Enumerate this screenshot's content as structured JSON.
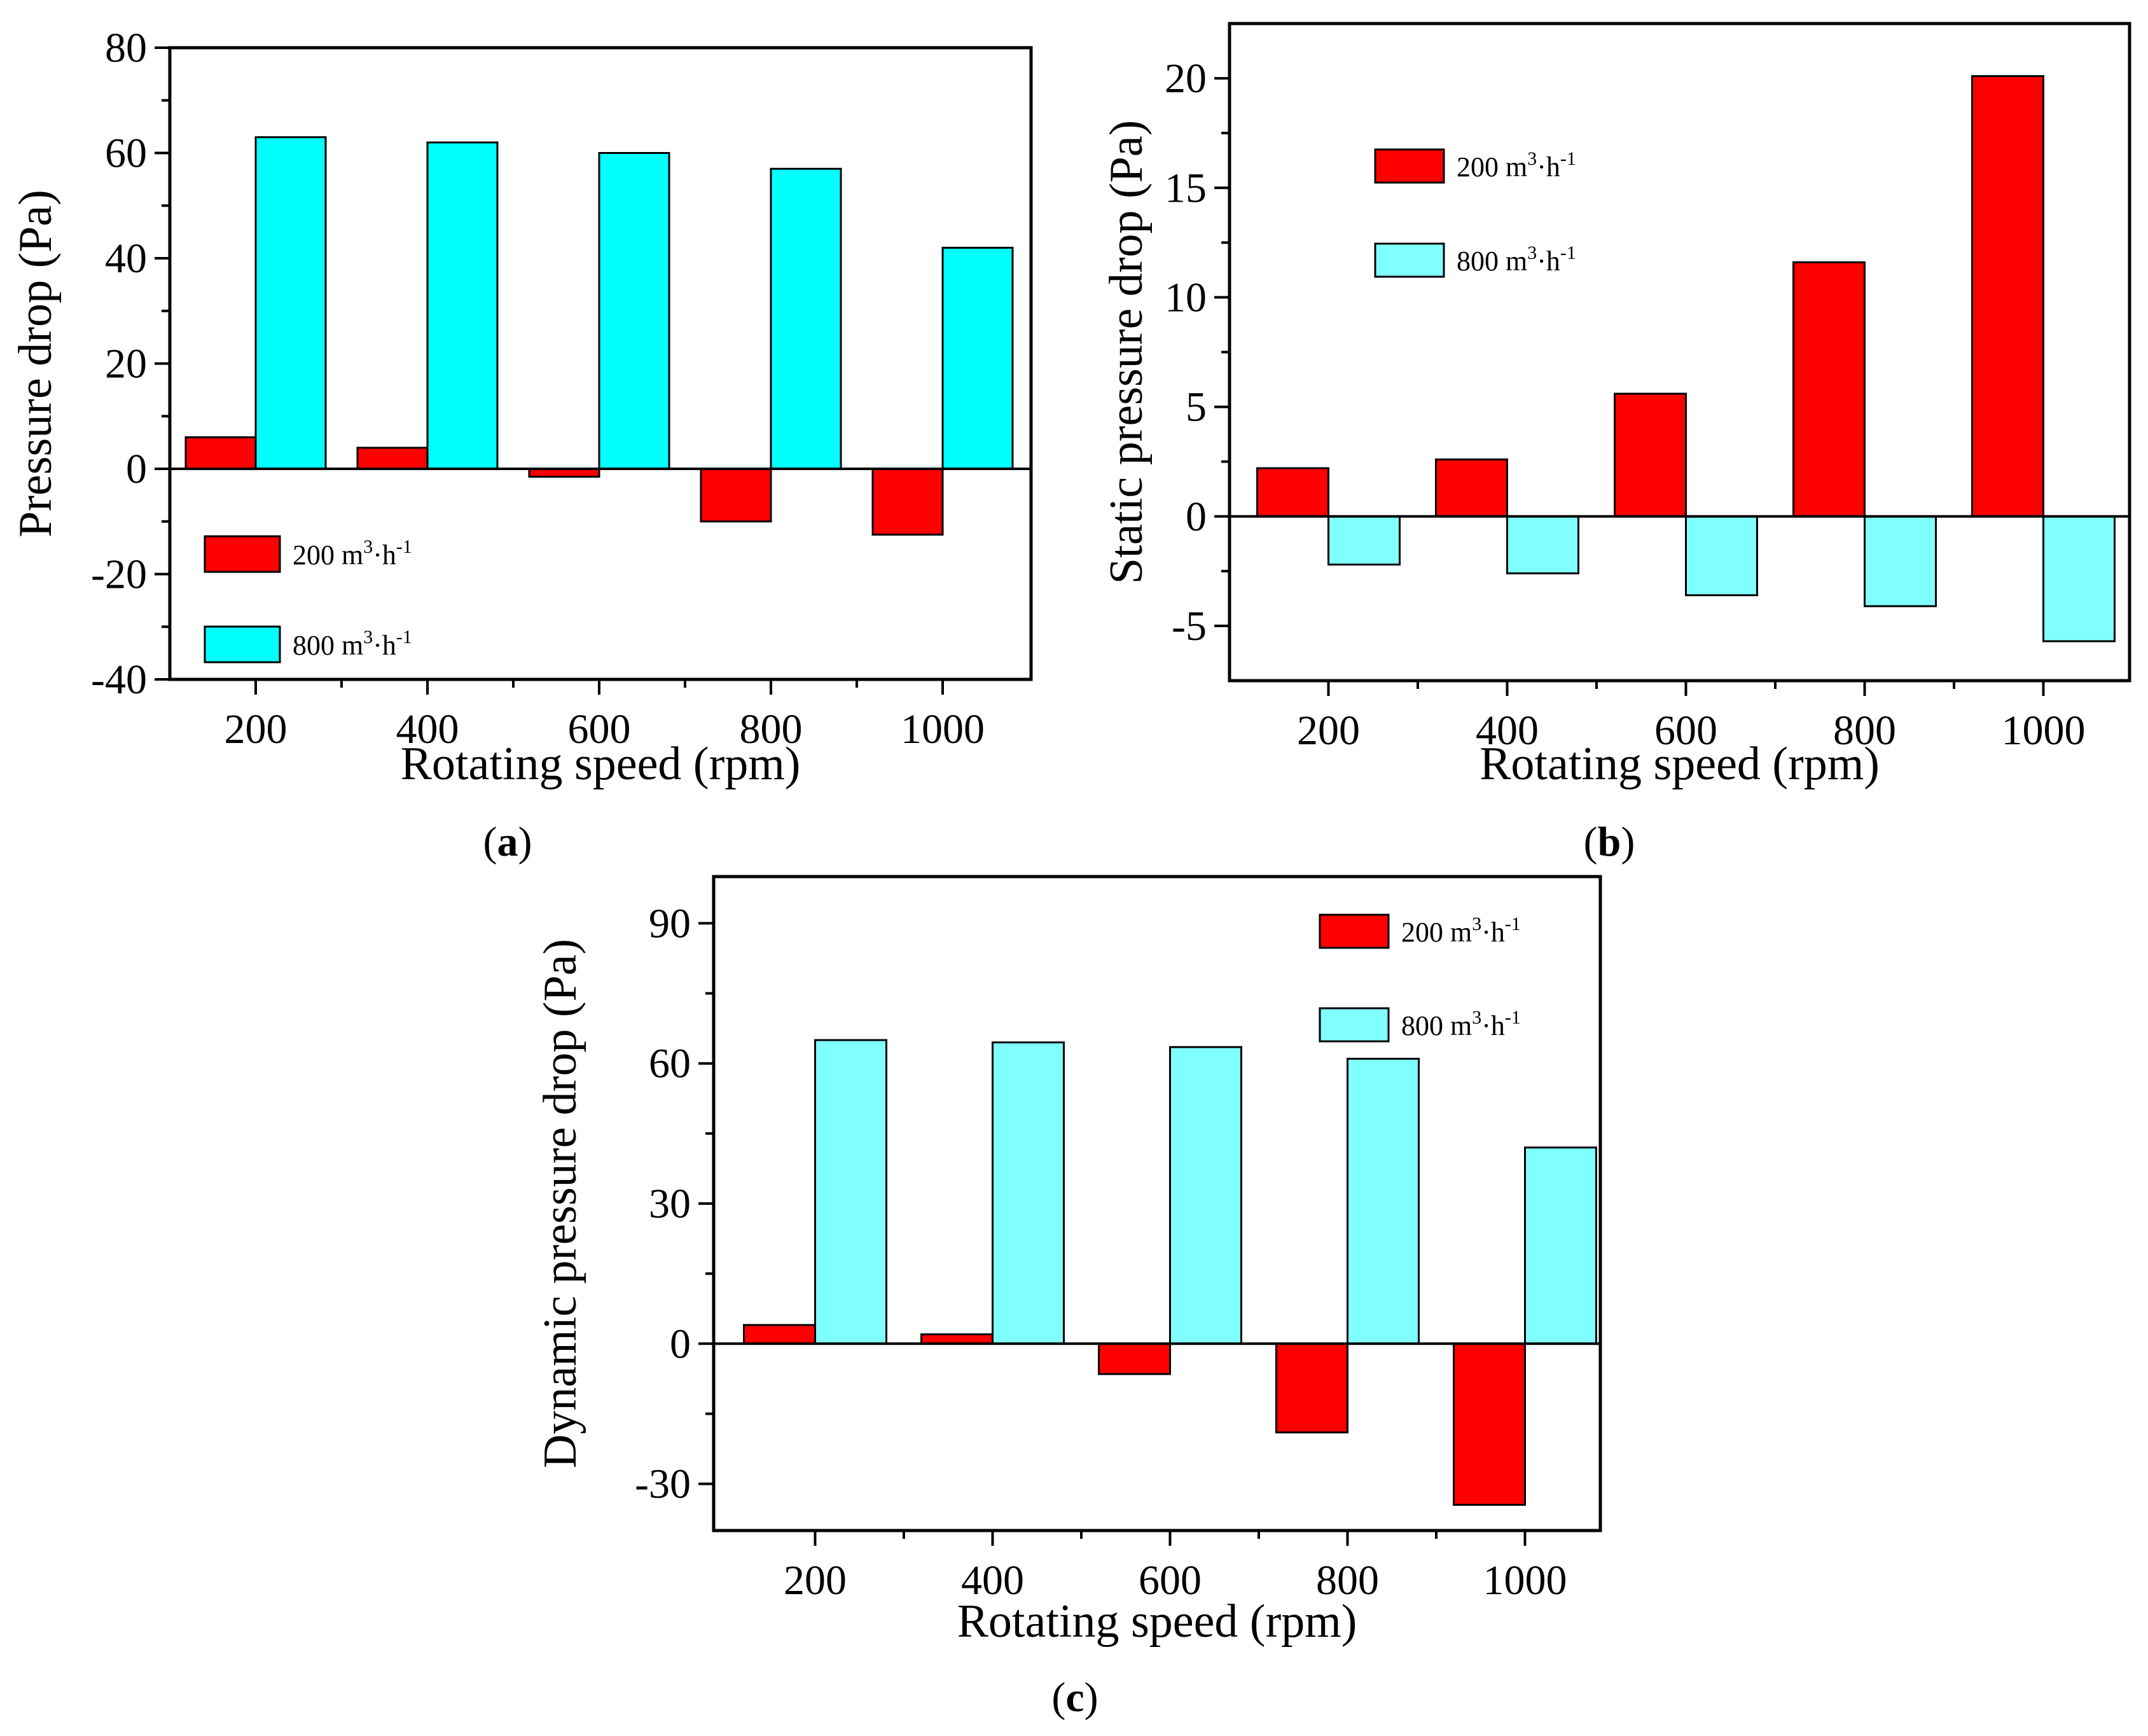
{
  "chart_data": [
    {
      "id": "a",
      "type": "bar",
      "caption": "a",
      "xlabel": "Rotating speed (rpm)",
      "ylabel": "Pressure drop (Pa)",
      "categories": [
        "200",
        "400",
        "600",
        "800",
        "1000"
      ],
      "ylim": [
        -40,
        80
      ],
      "yticks": [
        -40,
        -20,
        0,
        20,
        40,
        60,
        80
      ],
      "yticks_text": [
        "-40",
        "-20",
        "0",
        "20",
        "40",
        "60",
        "80"
      ],
      "legend_position": "bottom-left",
      "series": [
        {
          "name": "200 m³·h⁻¹",
          "name_base": "200 m",
          "name_mid": "·h",
          "color": "#ff0000",
          "values": [
            6,
            4,
            -1.5,
            -10,
            -12.5
          ]
        },
        {
          "name": "800 m³·h⁻¹",
          "name_base": "800 m",
          "name_mid": "·h",
          "color": "#00ffff",
          "values": [
            63,
            62,
            60,
            57,
            42
          ]
        }
      ]
    },
    {
      "id": "b",
      "type": "bar",
      "caption": "b",
      "xlabel": "Rotating speed (rpm)",
      "ylabel": "Static pressure drop (Pa)",
      "categories": [
        "200",
        "400",
        "600",
        "800",
        "1000"
      ],
      "ylim": [
        -7.5,
        22.5
      ],
      "yticks": [
        -5,
        0,
        5,
        10,
        15,
        20
      ],
      "yticks_text": [
        "-5",
        "0",
        "5",
        "10",
        "15",
        "20"
      ],
      "legend_position": "top-left",
      "series": [
        {
          "name": "200 m³·h⁻¹",
          "name_base": "200 m",
          "name_mid": "·h",
          "color": "#ff0000",
          "values": [
            2.2,
            2.6,
            5.6,
            11.6,
            20.1
          ]
        },
        {
          "name": "800 m³·h⁻¹",
          "name_base": "800 m",
          "name_mid": "·h",
          "color": "#80ffff",
          "values": [
            -2.2,
            -2.6,
            -3.6,
            -4.1,
            -5.7
          ]
        }
      ]
    },
    {
      "id": "c",
      "type": "bar",
      "caption": "c",
      "xlabel": "Rotating speed (rpm)",
      "ylabel": "Dynamic pressure drop (Pa)",
      "categories": [
        "200",
        "400",
        "600",
        "800",
        "1000"
      ],
      "ylim": [
        -40,
        100
      ],
      "yticks": [
        -30,
        0,
        30,
        60,
        90
      ],
      "yticks_text": [
        "-30",
        "0",
        "30",
        "60",
        "90"
      ],
      "legend_position": "top-right",
      "series": [
        {
          "name": "200 m³·h⁻¹",
          "name_base": "200 m",
          "name_mid": "·h",
          "color": "#ff0000",
          "values": [
            4,
            2,
            -6.5,
            -19,
            -34.5
          ]
        },
        {
          "name": "800 m³·h⁻¹",
          "name_base": "800 m",
          "name_mid": "·h",
          "color": "#80ffff",
          "values": [
            65,
            64.5,
            63.5,
            61,
            42
          ]
        }
      ]
    }
  ]
}
